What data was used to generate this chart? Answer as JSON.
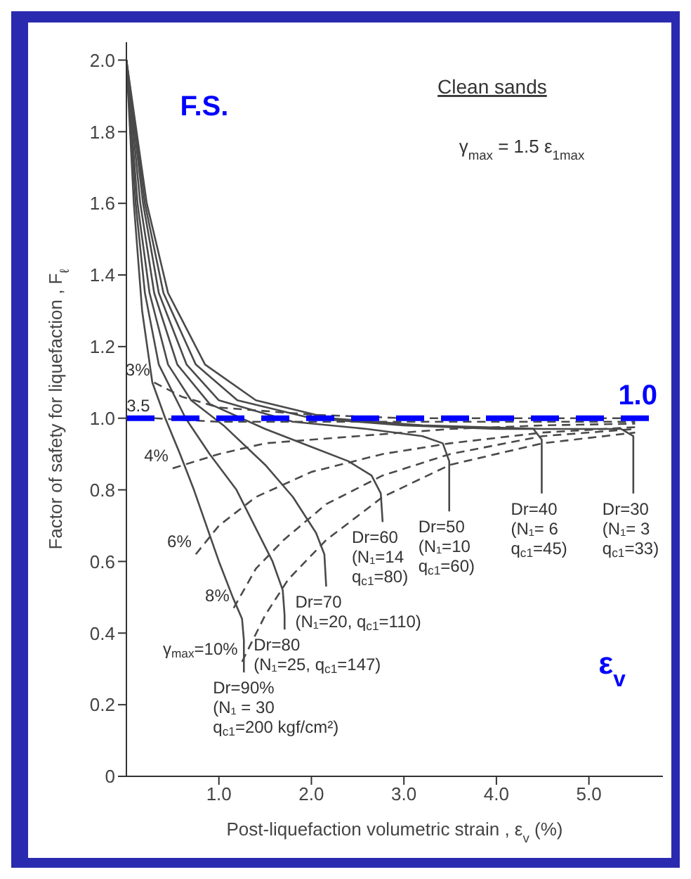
{
  "chart_data": {
    "type": "line",
    "xlabel": "Post-liquefaction volumetric strain , ε$_{v}$ (%)",
    "ylabel": "Factor of safety for liquefaction , F$_{ℓ}$",
    "xlim": [
      0,
      5.8
    ],
    "xticks": [
      {
        "value": 1,
        "label": "1.0"
      },
      {
        "value": 2,
        "label": "2.0"
      },
      {
        "value": 3,
        "label": "3.0"
      },
      {
        "value": 4,
        "label": "4.0"
      },
      {
        "value": 5,
        "label": "5.0"
      }
    ],
    "ylim": [
      0,
      2.05
    ],
    "yticks": [
      0,
      0.2,
      0.4,
      0.6,
      0.8,
      {
        "value": 1,
        "label": "1.0"
      },
      1.2,
      1.4,
      1.6,
      1.8,
      {
        "value": 2,
        "label": "2.0"
      }
    ],
    "marker": "none",
    "series": [
      {
        "name": "Dr=90%\n(N₁ = 30\nq$_{c1}$=200 kgf/cm²)",
        "color": "#4a4a4a",
        "line_style": "solid",
        "x": [
          0,
          0.08,
          0.17,
          0.28,
          0.42,
          0.58,
          0.73,
          1.0,
          1.15,
          1.25,
          1.27,
          1.27
        ],
        "values": [
          2.0,
          1.6,
          1.3,
          1.1,
          1.0,
          0.9,
          0.8,
          0.6,
          0.5,
          0.44,
          0.38,
          0.29
        ]
      },
      {
        "name": "Dr=80\n(N₁=25, q$_{c1}$=147)",
        "color": "#4a4a4a",
        "line_style": "solid",
        "x": [
          0,
          0.1,
          0.2,
          0.35,
          0.64,
          0.9,
          1.19,
          1.58,
          1.69,
          1.71,
          1.71
        ],
        "values": [
          2.0,
          1.6,
          1.35,
          1.15,
          1.0,
          0.9,
          0.8,
          0.6,
          0.52,
          0.45,
          0.41
        ]
      },
      {
        "name": "Dr=70\n(N₁=20, q$_{c1}$=110)",
        "color": "#4a4a4a",
        "line_style": "solid",
        "x": [
          0,
          0.12,
          0.25,
          0.45,
          0.7,
          1.05,
          1.5,
          1.8,
          2.05,
          2.14,
          2.16
        ],
        "values": [
          2.0,
          1.6,
          1.35,
          1.15,
          1.05,
          0.98,
          0.87,
          0.78,
          0.68,
          0.62,
          0.53
        ]
      },
      {
        "name": "Dr=60\n(N₁=14\nq$_{c1}$=80)",
        "color": "#4a4a4a",
        "line_style": "solid",
        "x": [
          0,
          0.15,
          0.3,
          0.55,
          0.9,
          1.5,
          2.0,
          2.4,
          2.65,
          2.75,
          2.77
        ],
        "values": [
          2.0,
          1.6,
          1.35,
          1.15,
          1.04,
          0.97,
          0.92,
          0.88,
          0.84,
          0.79,
          0.71
        ]
      },
      {
        "name": "Dr=50\n(N₁=10\nq$_{c1}$=60)",
        "color": "#4a4a4a",
        "line_style": "solid",
        "x": [
          0,
          0.18,
          0.35,
          0.65,
          1.0,
          1.8,
          2.6,
          3.2,
          3.42,
          3.49,
          3.49
        ],
        "values": [
          2.0,
          1.6,
          1.35,
          1.15,
          1.05,
          0.99,
          0.97,
          0.95,
          0.93,
          0.88,
          0.74
        ]
      },
      {
        "name": "Dr=40\n(N₁= 6\nq$_{c1}$=45)",
        "color": "#4a4a4a",
        "line_style": "solid",
        "x": [
          0,
          0.2,
          0.4,
          0.75,
          1.2,
          2.0,
          3.0,
          4.0,
          4.4,
          4.49,
          4.49
        ],
        "values": [
          2.0,
          1.6,
          1.35,
          1.15,
          1.05,
          1.0,
          0.98,
          0.97,
          0.97,
          0.94,
          0.79
        ]
      },
      {
        "name": "Dr=30\n(N₁= 3\nq$_{c1}$=33)",
        "color": "#4a4a4a",
        "line_style": "solid",
        "x": [
          0,
          0.22,
          0.45,
          0.85,
          1.4,
          2.2,
          3.2,
          4.5,
          5.35,
          5.48,
          5.48
        ],
        "values": [
          2.0,
          1.6,
          1.35,
          1.15,
          1.05,
          1.0,
          0.98,
          0.97,
          0.97,
          0.95,
          0.79
        ]
      },
      {
        "name": "3%",
        "color": "#4a4a4a",
        "line_style": "dashed",
        "x": [
          0.3,
          0.6,
          1.0,
          2.0,
          3.0,
          5.5
        ],
        "values": [
          1.1,
          1.06,
          1.03,
          1.01,
          1.0,
          1.0
        ]
      },
      {
        "name": "3.5",
        "color": "#4a4a4a",
        "line_style": "dashed",
        "x": [
          0.3,
          1.0,
          3.0,
          5.5
        ],
        "values": [
          1.0,
          0.99,
          0.99,
          0.99
        ]
      },
      {
        "name": "4%",
        "color": "#4a4a4a",
        "line_style": "dashed",
        "x": [
          0.5,
          1.0,
          1.5,
          2.5,
          3.5,
          4.5,
          5.5
        ],
        "values": [
          0.86,
          0.9,
          0.93,
          0.95,
          0.97,
          0.98,
          0.985
        ]
      },
      {
        "name": "6%",
        "color": "#4a4a4a",
        "line_style": "dashed",
        "x": [
          0.75,
          1.0,
          1.4,
          2.0,
          2.77,
          3.5,
          4.5,
          5.5
        ],
        "values": [
          0.62,
          0.7,
          0.78,
          0.85,
          0.9,
          0.93,
          0.96,
          0.975
        ]
      },
      {
        "name": "8%",
        "color": "#4a4a4a",
        "line_style": "dashed",
        "x": [
          1.16,
          1.4,
          1.7,
          2.16,
          2.77,
          3.5,
          4.5,
          5.5
        ],
        "values": [
          0.47,
          0.58,
          0.66,
          0.76,
          0.84,
          0.9,
          0.95,
          0.97
        ]
      },
      {
        "name": "γ$_{max}$=10%",
        "color": "#4a4a4a",
        "line_style": "dashed",
        "x": [
          1.25,
          1.5,
          1.75,
          2.16,
          2.77,
          3.5,
          4.5,
          5.5
        ],
        "values": [
          0.32,
          0.45,
          0.55,
          0.66,
          0.78,
          0.87,
          0.93,
          0.96
        ]
      }
    ],
    "ref_lines": [
      {
        "axis": "y",
        "value": 1.0,
        "label": "1.0",
        "color": "#0000ff",
        "line_style": "dashed"
      }
    ],
    "annotations": [
      "Clean sands",
      "γ$_{max}$ = 1.5 ε$_{1max}$",
      "F.S.",
      "ε$_{v}$"
    ]
  }
}
